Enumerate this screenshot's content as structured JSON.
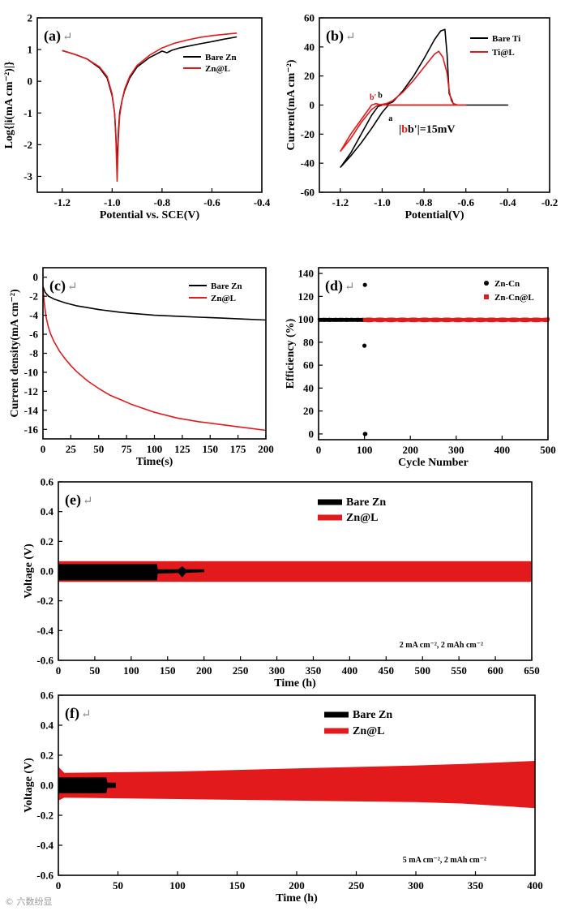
{
  "colors": {
    "bare": "#000000",
    "coated": "#e31a1c",
    "return_mark": "#8a8a8a"
  },
  "return_mark": "↵",
  "watermark": "© 六数纷显",
  "chart_data": [
    {
      "id": "a",
      "type": "line",
      "panel_label": "(a)",
      "xlabel": "Potential vs. SCE(V)",
      "ylabel": "Log{|i(mA cm⁻²)|}",
      "xlim": [
        -1.3,
        -0.4
      ],
      "ylim": [
        -3.5,
        2
      ],
      "xticks": [
        -1.2,
        -1.0,
        -0.8,
        -0.6,
        -0.4
      ],
      "yticks": [
        -3,
        -2,
        -1,
        0,
        1,
        2
      ],
      "xtick_labels": [
        "-1.2",
        "-1.0",
        "-0.8",
        "-0.6",
        "-0.4"
      ],
      "ytick_labels": [
        "-3",
        "-2",
        "-1",
        "0",
        "1",
        "2"
      ],
      "legend_position": "top-right",
      "series": [
        {
          "name": "Bare Zn",
          "color": "#000000",
          "x": [
            -1.2,
            -1.15,
            -1.1,
            -1.05,
            -1.02,
            -1.0,
            -0.99,
            -0.985,
            -0.98,
            -0.975,
            -0.97,
            -0.96,
            -0.95,
            -0.93,
            -0.9,
            -0.85,
            -0.8,
            -0.78,
            -0.76,
            -0.73,
            -0.7,
            -0.65,
            -0.6,
            -0.55,
            -0.5
          ],
          "y": [
            0.97,
            0.85,
            0.7,
            0.42,
            0.1,
            -0.45,
            -1.0,
            -1.7,
            -2.7,
            -1.6,
            -1.0,
            -0.6,
            -0.3,
            0.1,
            0.45,
            0.75,
            0.95,
            0.9,
            0.98,
            1.05,
            1.1,
            1.18,
            1.25,
            1.33,
            1.4
          ]
        },
        {
          "name": "Zn@L",
          "color": "#e31a1c",
          "x": [
            -1.2,
            -1.15,
            -1.1,
            -1.05,
            -1.02,
            -1.0,
            -0.99,
            -0.985,
            -0.98,
            -0.975,
            -0.97,
            -0.96,
            -0.95,
            -0.93,
            -0.9,
            -0.85,
            -0.8,
            -0.75,
            -0.7,
            -0.65,
            -0.6,
            -0.55,
            -0.5
          ],
          "y": [
            0.97,
            0.85,
            0.7,
            0.45,
            0.15,
            -0.4,
            -1.0,
            -1.8,
            -3.15,
            -1.8,
            -1.1,
            -0.6,
            -0.25,
            0.15,
            0.5,
            0.82,
            1.05,
            1.2,
            1.3,
            1.38,
            1.44,
            1.48,
            1.52
          ]
        }
      ]
    },
    {
      "id": "b",
      "type": "line",
      "panel_label": "(b)",
      "xlabel": "Potential(V)",
      "ylabel": "Current(mA cm⁻²)",
      "xlim": [
        -1.3,
        -0.2
      ],
      "ylim": [
        -60,
        60
      ],
      "xticks": [
        -1.2,
        -1.0,
        -0.8,
        -0.6,
        -0.4,
        -0.2
      ],
      "yticks": [
        -60,
        -40,
        -20,
        0,
        20,
        40,
        60
      ],
      "xtick_labels": [
        "-1.2",
        "-1.0",
        "-0.8",
        "-0.6",
        "-0.4",
        "-0.2"
      ],
      "ytick_labels": [
        "-60",
        "-40",
        "-20",
        "0",
        "20",
        "40",
        "60"
      ],
      "legend_position": "top-right",
      "annotations": {
        "b_prime": "b'",
        "b": "b",
        "a": "a",
        "delta": "|bb'|=15mV"
      },
      "series": [
        {
          "name": "Bare Ti",
          "color": "#000000",
          "x": [
            -1.2,
            -1.15,
            -1.1,
            -1.05,
            -1.02,
            -1.0,
            -0.98,
            -0.95,
            -0.9,
            -0.85,
            -0.8,
            -0.75,
            -0.72,
            -0.7,
            -0.69,
            -0.68,
            -0.66,
            -0.64,
            -0.6,
            -0.5,
            -0.4,
            -0.5,
            -0.6,
            -0.7,
            -0.8,
            -0.9,
            -0.95,
            -0.97,
            -1.0,
            -1.05,
            -1.1,
            -1.15,
            -1.2
          ],
          "y": [
            -43,
            -33,
            -20,
            -7,
            -1,
            0,
            0.5,
            2,
            10,
            20,
            32,
            45,
            51,
            52,
            35,
            8,
            1,
            0,
            0,
            0,
            0,
            0,
            0,
            0,
            0,
            0,
            0,
            0,
            -5,
            -16,
            -26,
            -35,
            -43
          ]
        },
        {
          "name": "Ti@L",
          "color": "#e31a1c",
          "x": [
            -1.2,
            -1.15,
            -1.1,
            -1.05,
            -1.02,
            -1.0,
            -0.98,
            -0.95,
            -0.9,
            -0.85,
            -0.8,
            -0.75,
            -0.73,
            -0.71,
            -0.69,
            -0.68,
            -0.67,
            -0.66,
            -0.64,
            -0.6,
            -0.7,
            -0.8,
            -0.9,
            -0.95,
            -1.0,
            -1.03,
            -1.05,
            -1.1,
            -1.15,
            -1.2
          ],
          "y": [
            -32,
            -23,
            -12,
            -3,
            0,
            0.5,
            1,
            3,
            9,
            17,
            26,
            35,
            37,
            33,
            22,
            10,
            3,
            1,
            0,
            0,
            0,
            0,
            0,
            0,
            0,
            1,
            0,
            -10,
            -20,
            -32
          ]
        }
      ]
    },
    {
      "id": "c",
      "type": "line",
      "panel_label": "(c)",
      "xlabel": "Time(s)",
      "ylabel": "Current density(mA cm⁻²)",
      "xlim": [
        0,
        200
      ],
      "ylim": [
        -17,
        1
      ],
      "xticks": [
        0,
        25,
        50,
        75,
        100,
        125,
        150,
        175,
        200
      ],
      "yticks": [
        0,
        -2,
        -4,
        -6,
        -8,
        -10,
        -12,
        -14,
        -16
      ],
      "xtick_labels": [
        "0",
        "25",
        "50",
        "75",
        "100",
        "125",
        "150",
        "175",
        "200"
      ],
      "ytick_labels": [
        "0",
        "-2",
        "-4",
        "-6",
        "-8",
        "-10",
        "-12",
        "-14",
        "-16"
      ],
      "legend_position": "top-right",
      "series": [
        {
          "name": "Bare Zn",
          "color": "#000000",
          "x": [
            0,
            2,
            5,
            10,
            20,
            30,
            40,
            50,
            60,
            70,
            80,
            90,
            100,
            120,
            140,
            160,
            180,
            200
          ],
          "y": [
            -1.0,
            -1.6,
            -2.0,
            -2.3,
            -2.7,
            -3.0,
            -3.2,
            -3.4,
            -3.55,
            -3.7,
            -3.8,
            -3.9,
            -4.0,
            -4.1,
            -4.2,
            -4.3,
            -4.4,
            -4.5
          ]
        },
        {
          "name": "Zn@L",
          "color": "#e31a1c",
          "x": [
            0,
            1,
            2,
            3,
            5,
            7,
            10,
            15,
            20,
            25,
            30,
            40,
            50,
            60,
            70,
            80,
            90,
            100,
            120,
            140,
            160,
            180,
            200
          ],
          "y": [
            -1.2,
            -2.5,
            -3.5,
            -4.3,
            -5.3,
            -6.0,
            -6.8,
            -7.8,
            -8.6,
            -9.3,
            -9.9,
            -10.9,
            -11.7,
            -12.4,
            -12.9,
            -13.4,
            -13.8,
            -14.2,
            -14.8,
            -15.2,
            -15.5,
            -15.8,
            -16.1
          ]
        }
      ]
    },
    {
      "id": "d",
      "type": "scatter",
      "panel_label": "(d)",
      "xlabel": "Cycle Number",
      "ylabel": "Efficiency (%)",
      "xlim": [
        0,
        500
      ],
      "ylim": [
        -5,
        145
      ],
      "xticks": [
        0,
        100,
        200,
        300,
        400,
        500
      ],
      "yticks": [
        0,
        20,
        40,
        60,
        80,
        100,
        120,
        140
      ],
      "xtick_labels": [
        "0",
        "100",
        "200",
        "300",
        "400",
        "500"
      ],
      "ytick_labels": [
        "0",
        "20",
        "40",
        "60",
        "80",
        "100",
        "120",
        "140"
      ],
      "legend_position": "top-right",
      "series": [
        {
          "name": "Zn-Cn",
          "color": "#000000",
          "marker": "circle",
          "summary": {
            "x_range": [
              1,
              99
            ],
            "value": 99.5
          },
          "outliers": [
            {
              "x": 101,
              "y": 130
            },
            {
              "x": 100,
              "y": 77
            },
            {
              "x": 101,
              "y": 0
            },
            {
              "x": 102,
              "y": 0
            }
          ]
        },
        {
          "name": "Zn-Cn@L",
          "color": "#e31a1c",
          "marker": "square",
          "summary": {
            "x_range": [
              100,
              500
            ],
            "value": 99.5
          }
        }
      ]
    },
    {
      "id": "e",
      "type": "area",
      "panel_label": "(e)",
      "xlabel": "Time (h)",
      "ylabel": "Voltage (V)",
      "condition": "2 mA cm⁻², 2 mAh cm⁻²",
      "xlim": [
        0,
        650
      ],
      "ylim": [
        -0.6,
        0.6
      ],
      "xticks": [
        0,
        50,
        100,
        150,
        200,
        250,
        300,
        350,
        400,
        450,
        500,
        550,
        600,
        650
      ],
      "yticks": [
        0.6,
        0.4,
        0.2,
        0.0,
        -0.2,
        -0.4,
        -0.6
      ],
      "xtick_labels": [
        "0",
        "50",
        "100",
        "150",
        "200",
        "250",
        "300",
        "350",
        "400",
        "450",
        "500",
        "550",
        "600",
        "650"
      ],
      "ytick_labels": [
        "0.6",
        "0.4",
        "0.2",
        "0.0",
        "-0.2",
        "-0.4",
        "-0.6"
      ],
      "legend_position": "top-center",
      "series": [
        {
          "name": "Zn@L",
          "color": "#e31a1c",
          "x": [
            0,
            650
          ],
          "upper": [
            0.065,
            0.065
          ],
          "lower": [
            -0.07,
            -0.07
          ]
        },
        {
          "name": "Bare Zn",
          "color": "#000000",
          "x": [
            0,
            135,
            136,
            165,
            170,
            175,
            200
          ],
          "upper": [
            0.045,
            0.045,
            0.01,
            0.01,
            0.03,
            0.01,
            0.01
          ],
          "lower": [
            -0.06,
            -0.06,
            -0.015,
            -0.01,
            -0.04,
            -0.01,
            -0.005
          ]
        }
      ]
    },
    {
      "id": "f",
      "type": "area",
      "panel_label": "(f)",
      "xlabel": "Time (h)",
      "ylabel": "Voltage (V)",
      "condition": "5 mA cm⁻², 2 mAh cm⁻²",
      "xlim": [
        0,
        400
      ],
      "ylim": [
        -0.6,
        0.6
      ],
      "xticks": [
        0,
        50,
        100,
        150,
        200,
        250,
        300,
        350,
        400
      ],
      "yticks": [
        0.6,
        0.4,
        0.2,
        0.0,
        -0.2,
        -0.4,
        -0.6
      ],
      "xtick_labels": [
        "0",
        "50",
        "100",
        "150",
        "200",
        "250",
        "300",
        "350",
        "400"
      ],
      "ytick_labels": [
        "0.6",
        "0.4",
        "0.2",
        "0.0",
        "-0.2",
        "-0.4",
        "-0.6"
      ],
      "legend_position": "top-center",
      "series": [
        {
          "name": "Zn@L",
          "color": "#e31a1c",
          "x": [
            0,
            5,
            50,
            100,
            200,
            300,
            340,
            400
          ],
          "upper": [
            0.12,
            0.08,
            0.085,
            0.09,
            0.11,
            0.13,
            0.14,
            0.16
          ],
          "lower": [
            -0.1,
            -0.08,
            -0.085,
            -0.09,
            -0.1,
            -0.11,
            -0.12,
            -0.15
          ]
        },
        {
          "name": "Bare Zn",
          "color": "#000000",
          "x": [
            0,
            40,
            41,
            48
          ],
          "upper": [
            0.05,
            0.05,
            0.015,
            0.015
          ],
          "lower": [
            -0.05,
            -0.05,
            -0.015,
            -0.015
          ]
        }
      ]
    }
  ]
}
